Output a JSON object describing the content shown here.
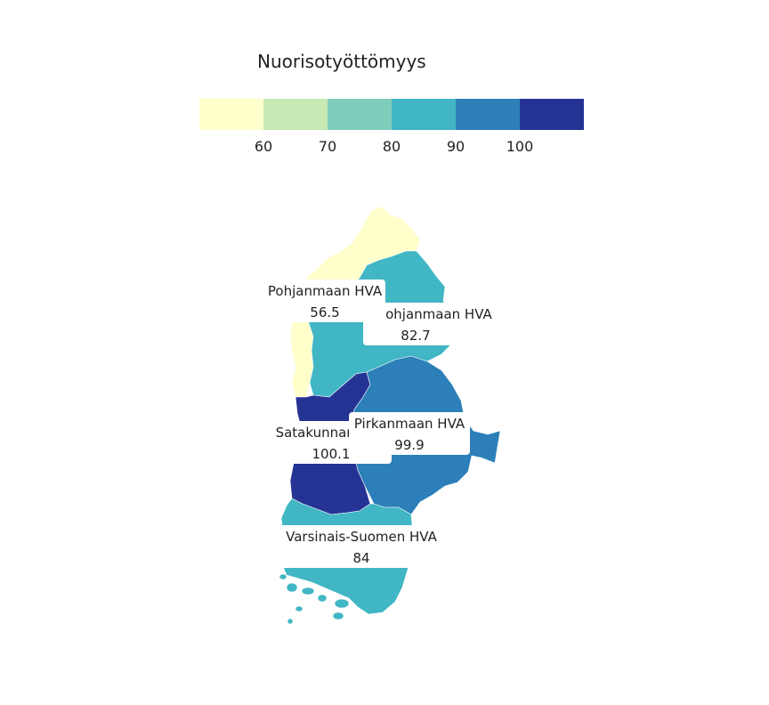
{
  "legend": {
    "title": "Nuorisotyöttömyys",
    "colors": [
      "#ffffcc",
      "#c7e9b4",
      "#7fcdbb",
      "#41b6c4",
      "#2c7fb8",
      "#253494"
    ],
    "ticks": [
      "60",
      "70",
      "80",
      "90",
      "100"
    ]
  },
  "regions": [
    {
      "name": "Pohjanmaan HVA",
      "value": "56.5",
      "color": "#ffffcc"
    },
    {
      "name": "Etelä-Pohjanmaan HVA",
      "value": "82.7",
      "color": "#41b6c4"
    },
    {
      "name": "Satakunnan HVA",
      "value": "100.1",
      "color": "#253494"
    },
    {
      "name": "Pirkanmaan HVA",
      "value": "99.9",
      "color": "#2c7fb8"
    },
    {
      "name": "Varsinais-Suomen HVA",
      "value": "84",
      "color": "#41b6c4"
    }
  ]
}
